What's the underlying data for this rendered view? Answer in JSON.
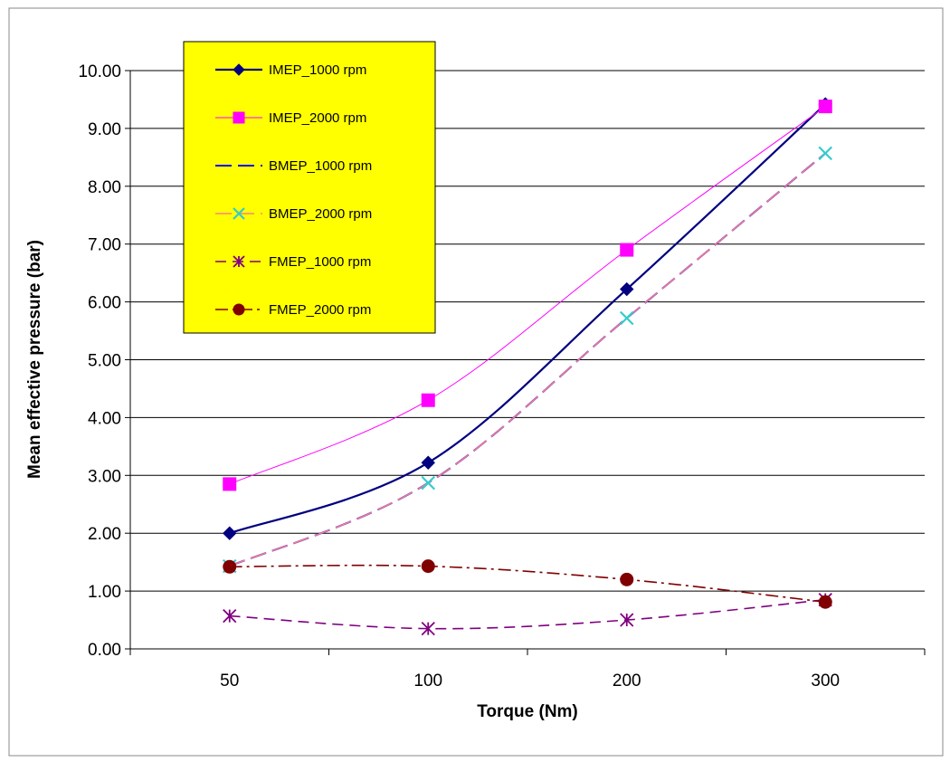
{
  "chart_data": {
    "type": "line",
    "title": "",
    "xlabel": "Torque (Nm)",
    "ylabel": "Mean effective pressure (bar)",
    "categories": [
      "50",
      "100",
      "200",
      "300"
    ],
    "ylim": [
      0,
      10
    ],
    "yticks": [
      "0.00",
      "1.00",
      "2.00",
      "3.00",
      "4.00",
      "5.00",
      "6.00",
      "7.00",
      "8.00",
      "9.00",
      "10.00"
    ],
    "grid": "horizontal",
    "legend_position": "top-left",
    "legend_background": "#ffff00",
    "series": [
      {
        "name": "IMEP_1000 rpm",
        "values": [
          2.0,
          3.22,
          6.22,
          9.42
        ],
        "color": "#000080",
        "marker": "diamond",
        "dash": "solid",
        "width": 2.2,
        "smooth": true
      },
      {
        "name": "IMEP_2000 rpm",
        "values": [
          2.85,
          4.3,
          6.9,
          9.38
        ],
        "color": "#ff00ff",
        "marker": "square",
        "dash": "solid",
        "width": 1,
        "smooth": true
      },
      {
        "name": "BMEP_1000 rpm",
        "values": [
          1.43,
          2.87,
          5.72,
          8.57
        ],
        "color": "#0000ff",
        "marker": "none",
        "dash": "long-dash",
        "width": 2,
        "smooth": true
      },
      {
        "name": "BMEP_2000 rpm",
        "values": [
          1.43,
          2.87,
          5.72,
          8.57
        ],
        "color": "#ff8080",
        "marker": "x",
        "markerColor": "#33cccc",
        "dash": "long-dash",
        "width": 1.5,
        "smooth": true
      },
      {
        "name": "FMEP_1000 rpm",
        "values": [
          0.57,
          0.35,
          0.5,
          0.85
        ],
        "color": "#800080",
        "marker": "star",
        "dash": "dash",
        "width": 1.6,
        "smooth": true
      },
      {
        "name": "FMEP_2000 rpm",
        "values": [
          1.42,
          1.43,
          1.2,
          0.81
        ],
        "color": "#800000",
        "marker": "circle",
        "dash": "dash-dot",
        "width": 1.6,
        "smooth": true
      }
    ]
  }
}
